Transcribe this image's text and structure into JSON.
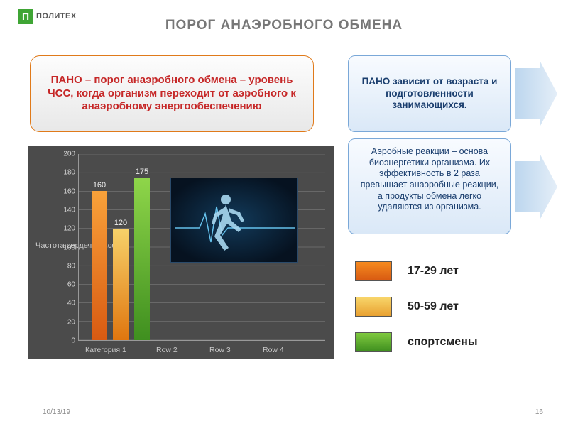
{
  "logo": {
    "mark": "П",
    "text": "ПОЛИТЕХ"
  },
  "title": "ПОРОГ АНАЭРОБНОГО ОБМЕНА",
  "definition": "ПАНО – порог анаэробного обмена – уровень ЧСС, когда организм переходит от аэробного к анаэробному энергообеспечению",
  "box1": "ПАНО зависит от возраста и подготовленности занимающихся.",
  "box2": "Аэробные реакции – основа биоэнергетики организма. Их эффективность в 2 раза превышает анаэробные реакции, а продукты обмена легко удаляются из организма.",
  "chart": {
    "type": "bar",
    "axis_title": "Частота сердечных сок",
    "ylim": [
      0,
      200
    ],
    "ytick_step": 20,
    "bg": "#4b4b4b",
    "grid_color": "#888888",
    "categories": [
      "Категория 1",
      "Row 2",
      "Row 3",
      "Row 4"
    ],
    "bars": [
      {
        "value": 160,
        "color_top": "#f9a23a",
        "color_bot": "#d85a12",
        "x": 18
      },
      {
        "value": 120,
        "color_top": "#f7d26a",
        "color_bot": "#e0760f",
        "x": 48
      },
      {
        "value": 175,
        "color_top": "#8fd64a",
        "color_bot": "#3f8f1f",
        "x": 78
      }
    ],
    "label_color": "#eeeeee",
    "label_fontsize": 11
  },
  "legend": [
    {
      "label": "17-29 лет",
      "color_top": "#f58a1f",
      "color_bot": "#d85a12"
    },
    {
      "label": "50-59 лет",
      "color_top": "#f8d56a",
      "color_bot": "#e8a030"
    },
    {
      "label": "спортсмены",
      "color_top": "#7fc93f",
      "color_bot": "#3f8f1f"
    }
  ],
  "footer": {
    "date": "10/13/19",
    "page": "16"
  }
}
